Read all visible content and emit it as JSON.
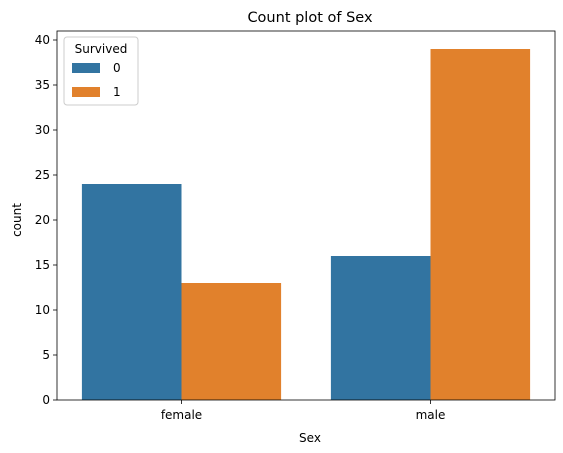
{
  "chart_data": {
    "type": "bar",
    "title": "Count plot of Sex",
    "xlabel": "Sex",
    "ylabel": "count",
    "categories": [
      "female",
      "male"
    ],
    "series": [
      {
        "name": "0",
        "values": [
          24,
          16
        ],
        "color": "#3274a1"
      },
      {
        "name": "1",
        "values": [
          13,
          39
        ],
        "color": "#e1812c"
      }
    ],
    "ylim": [
      0,
      41
    ],
    "yticks": [
      0,
      5,
      10,
      15,
      20,
      25,
      30,
      35,
      40
    ],
    "legend": {
      "title": "Survived",
      "placement": "top-left"
    },
    "grid": false
  }
}
